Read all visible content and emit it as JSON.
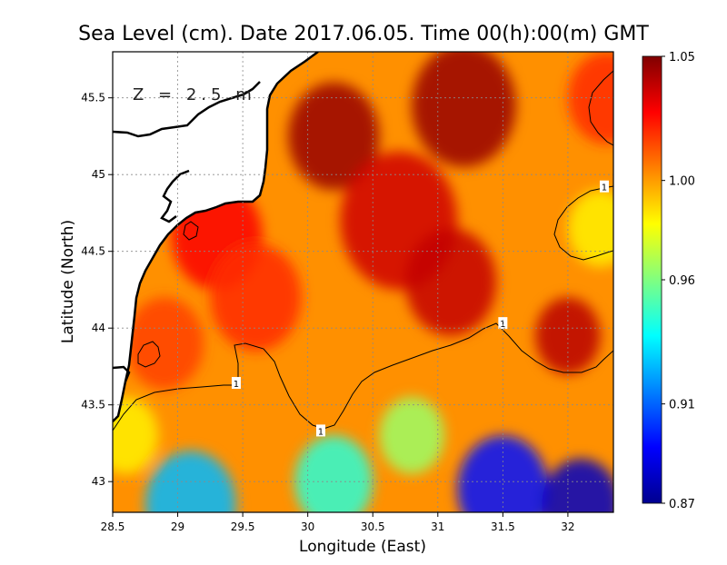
{
  "chart_data": {
    "type": "heatmap",
    "title": "Sea Level (cm). Date 2017.06.05. Time 00(h):00(m) GMT",
    "annotation": "Z = 2.5 m",
    "xlabel": "Longitude (East)",
    "ylabel": "Latitude (North)",
    "xlim": [
      28.5,
      32.35
    ],
    "ylim": [
      42.8,
      45.8
    ],
    "x_ticks": [
      28.5,
      29,
      29.5,
      30,
      30.5,
      31,
      31.5,
      32
    ],
    "x_tick_labels": [
      "28.5",
      "29",
      "29.5",
      "30",
      "30.5",
      "31",
      "31.5",
      "32"
    ],
    "y_ticks": [
      43,
      43.5,
      44,
      44.5,
      45,
      45.5
    ],
    "y_tick_labels": [
      "43",
      "43.5",
      "44",
      "44.5",
      "45",
      "45.5"
    ],
    "grid": true,
    "colorbar": {
      "min": 0.87,
      "max": 1.05,
      "ticks": [
        1.05,
        1.0,
        0.96,
        0.91,
        0.87
      ],
      "tick_labels": [
        "1.05",
        "1.00",
        "0.96",
        "0.91",
        "0.87"
      ],
      "colormap": [
        "#00008f",
        "#0000ff",
        "#0080ff",
        "#00ffff",
        "#80ff80",
        "#ffff00",
        "#ff8000",
        "#ff0000",
        "#800000"
      ]
    },
    "contour_labels": [
      {
        "lon": 29.45,
        "lat": 43.64,
        "text": "1"
      },
      {
        "lon": 30.1,
        "lat": 43.33,
        "text": "1"
      },
      {
        "lon": 31.5,
        "lat": 44.03,
        "text": "1"
      },
      {
        "lon": 32.28,
        "lat": 44.92,
        "text": "1"
      }
    ],
    "field_sources": [
      {
        "lon": 30.2,
        "lat": 45.25,
        "value": 1.046,
        "spread": 0.35
      },
      {
        "lon": 31.2,
        "lat": 45.45,
        "value": 1.046,
        "spread": 0.4
      },
      {
        "lon": 30.7,
        "lat": 44.7,
        "value": 1.036,
        "spread": 0.45
      },
      {
        "lon": 31.1,
        "lat": 44.3,
        "value": 1.038,
        "spread": 0.35
      },
      {
        "lon": 32.0,
        "lat": 43.95,
        "value": 1.04,
        "spread": 0.25
      },
      {
        "lon": 29.3,
        "lat": 44.6,
        "value": 1.028,
        "spread": 0.35
      },
      {
        "lon": 29.6,
        "lat": 44.2,
        "value": 1.02,
        "spread": 0.35
      },
      {
        "lon": 28.9,
        "lat": 43.9,
        "value": 1.016,
        "spread": 0.3
      },
      {
        "lon": 32.25,
        "lat": 44.65,
        "value": 0.985,
        "spread": 0.25
      },
      {
        "lon": 32.3,
        "lat": 45.5,
        "value": 1.02,
        "spread": 0.3
      },
      {
        "lon": 31.5,
        "lat": 42.95,
        "value": 0.895,
        "spread": 0.35
      },
      {
        "lon": 32.1,
        "lat": 42.85,
        "value": 0.88,
        "spread": 0.3
      },
      {
        "lon": 29.1,
        "lat": 42.85,
        "value": 0.925,
        "spread": 0.35
      },
      {
        "lon": 30.2,
        "lat": 43.0,
        "value": 0.945,
        "spread": 0.3
      },
      {
        "lon": 30.8,
        "lat": 43.3,
        "value": 0.965,
        "spread": 0.25
      },
      {
        "lon": 28.6,
        "lat": 43.3,
        "value": 0.985,
        "spread": 0.25
      }
    ]
  }
}
